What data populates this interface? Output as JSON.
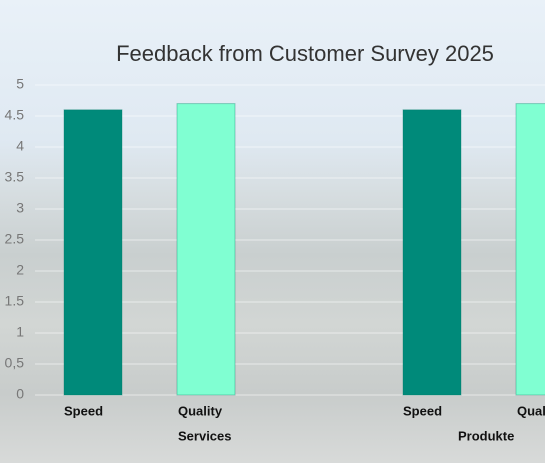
{
  "chart_data": {
    "type": "bar",
    "title": "Feedback from Customer Survey 2025",
    "categories": [
      "Services",
      "Produkte"
    ],
    "series": [
      {
        "name": "Speed",
        "color": "#008a7a",
        "values": [
          4.6,
          4.6
        ]
      },
      {
        "name": "Quality",
        "color": "#80ffd2",
        "values": [
          4.7,
          4.7
        ]
      }
    ],
    "ylim": [
      0,
      5
    ],
    "yticks": [
      0,
      {
        "value": 0.5,
        "label": "0,5"
      },
      1,
      1.5,
      2,
      2.5,
      3,
      3.5,
      4,
      4.5,
      5
    ],
    "grid": true
  }
}
